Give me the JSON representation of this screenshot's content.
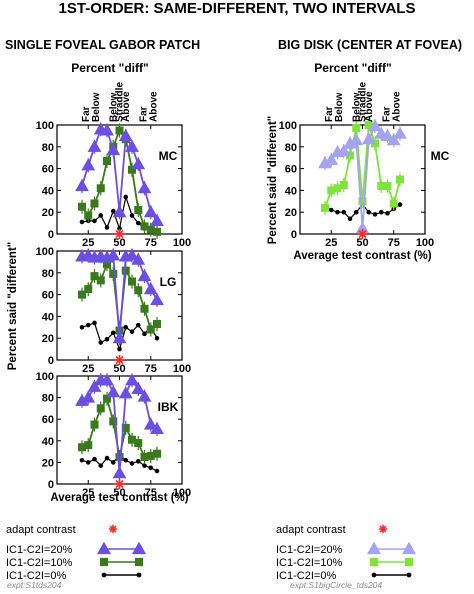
{
  "figure": {
    "title": "1ST-ORDER: SAME-DIFFERENT, TWO INTERVALS",
    "left_column_title": "SINGLE FOVEAL GABOR PATCH",
    "right_column_title": "BIG DISK (CENTER AT FOVEA)",
    "subtitle": "Percent \"diff\"",
    "categories": [
      "Far Below",
      "Below",
      "Straddle",
      "Above",
      "Far Above"
    ],
    "xlabel": "Average test contrast (%)",
    "ylabel": "Percent said \"different\"",
    "x_ticks": [
      "25",
      "50",
      "75",
      "100"
    ],
    "y_ticks": [
      "0",
      "20",
      "40",
      "60",
      "80",
      "100"
    ],
    "legend": {
      "adapt": "adapt contrast",
      "series": [
        "IC1-C2I=20%",
        "IC1-C2I=10%",
        "IC1-C2I=0%"
      ]
    },
    "footers": [
      "expt:S1tds204",
      "expt:S1bigCircle_tds204"
    ],
    "colors": {
      "left_20": "#6a4fe0",
      "left_10": "#3a7a1c",
      "right_20": "#a3a3ee",
      "right_10": "#7fe33c",
      "zero": "#000000",
      "adapt": "#ff2a2a"
    }
  },
  "chart_data": [
    {
      "type": "line",
      "panel": "left-top",
      "observer": "MC",
      "xlim": [
        0,
        100
      ],
      "ylim": [
        0,
        100
      ],
      "adapt_contrast": 50,
      "series": [
        {
          "name": "IC1-C2I=20%",
          "x": [
            20,
            25,
            30,
            35,
            40,
            45,
            50,
            55,
            60,
            65,
            70,
            75,
            80
          ],
          "y": [
            44,
            63,
            80,
            96,
            95,
            77,
            20,
            90,
            80,
            64,
            42,
            20,
            12
          ]
        },
        {
          "name": "IC1-C2I=10%",
          "x": [
            20,
            25,
            30,
            35,
            40,
            45,
            50,
            55,
            60,
            65,
            70,
            75,
            80
          ],
          "y": [
            25,
            17,
            28,
            42,
            67,
            80,
            95,
            87,
            59,
            22,
            7,
            4,
            2
          ]
        },
        {
          "name": "IC1-C2I=0%",
          "x": [
            20,
            25,
            30,
            35,
            40,
            45,
            50,
            55,
            60,
            65,
            70,
            75,
            80
          ],
          "y": [
            11,
            12,
            12,
            17,
            6,
            21,
            5,
            34,
            17,
            10,
            5,
            3,
            2
          ]
        }
      ]
    },
    {
      "type": "line",
      "panel": "left-middle",
      "observer": "LG",
      "xlim": [
        0,
        100
      ],
      "ylim": [
        0,
        100
      ],
      "adapt_contrast": 50,
      "series": [
        {
          "name": "IC1-C2I=20%",
          "x": [
            20,
            25,
            30,
            35,
            40,
            45,
            50,
            55,
            60,
            65,
            70,
            75,
            80
          ],
          "y": [
            95,
            96,
            94,
            95,
            94,
            96,
            20,
            95,
            96,
            92,
            77,
            65,
            55
          ]
        },
        {
          "name": "IC1-C2I=10%",
          "x": [
            20,
            25,
            30,
            35,
            40,
            45,
            50,
            55,
            60,
            65,
            70,
            75,
            80
          ],
          "y": [
            60,
            65,
            77,
            73,
            88,
            79,
            27,
            82,
            72,
            64,
            47,
            28,
            33
          ]
        },
        {
          "name": "IC1-C2I=0%",
          "x": [
            20,
            25,
            30,
            35,
            40,
            45,
            50,
            55,
            60,
            65,
            70,
            75,
            80
          ],
          "y": [
            30,
            32,
            34,
            16,
            19,
            25,
            10,
            30,
            26,
            32,
            24,
            30,
            20
          ]
        }
      ]
    },
    {
      "type": "line",
      "panel": "left-bottom",
      "observer": "IBK",
      "xlim": [
        0,
        100
      ],
      "ylim": [
        0,
        100
      ],
      "adapt_contrast": 50,
      "series": [
        {
          "name": "IC1-C2I=20%",
          "x": [
            20,
            25,
            30,
            35,
            40,
            45,
            50,
            55,
            60,
            65,
            70,
            75,
            80
          ],
          "y": [
            77,
            80,
            90,
            96,
            96,
            85,
            10,
            84,
            96,
            88,
            81,
            55,
            51
          ]
        },
        {
          "name": "IC1-C2I=10%",
          "x": [
            20,
            25,
            30,
            35,
            40,
            45,
            50,
            55,
            60,
            65,
            70,
            75,
            80
          ],
          "y": [
            34,
            36,
            55,
            70,
            79,
            58,
            25,
            52,
            41,
            38,
            25,
            26,
            28
          ]
        },
        {
          "name": "IC1-C2I=0%",
          "x": [
            20,
            25,
            30,
            35,
            40,
            45,
            50,
            55,
            60,
            65,
            70,
            75,
            80
          ],
          "y": [
            22,
            20,
            23,
            17,
            24,
            20,
            27,
            22,
            19,
            21,
            17,
            15,
            12
          ]
        }
      ]
    },
    {
      "type": "line",
      "panel": "right-top",
      "observer": "MC",
      "xlim": [
        0,
        100
      ],
      "ylim": [
        0,
        100
      ],
      "adapt_contrast": 50,
      "series": [
        {
          "name": "IC1-C2I=20%",
          "x": [
            20,
            25,
            30,
            35,
            40,
            45,
            50,
            55,
            60,
            65,
            70,
            75,
            80
          ],
          "y": [
            65,
            68,
            75,
            76,
            83,
            86,
            5,
            87,
            99,
            92,
            90,
            86,
            92
          ]
        },
        {
          "name": "IC1-C2I=10%",
          "x": [
            20,
            25,
            30,
            35,
            40,
            45,
            50,
            55,
            60,
            65,
            70,
            75,
            80
          ],
          "y": [
            24,
            40,
            42,
            45,
            72,
            97,
            30,
            100,
            83,
            44,
            44,
            28,
            50
          ]
        },
        {
          "name": "IC1-C2I=0%",
          "x": [
            20,
            25,
            30,
            35,
            40,
            45,
            50,
            55,
            60,
            65,
            70,
            75,
            80
          ],
          "y": [
            25,
            22,
            20,
            20,
            14,
            20,
            27,
            20,
            18,
            20,
            19,
            23,
            27
          ]
        }
      ]
    }
  ]
}
